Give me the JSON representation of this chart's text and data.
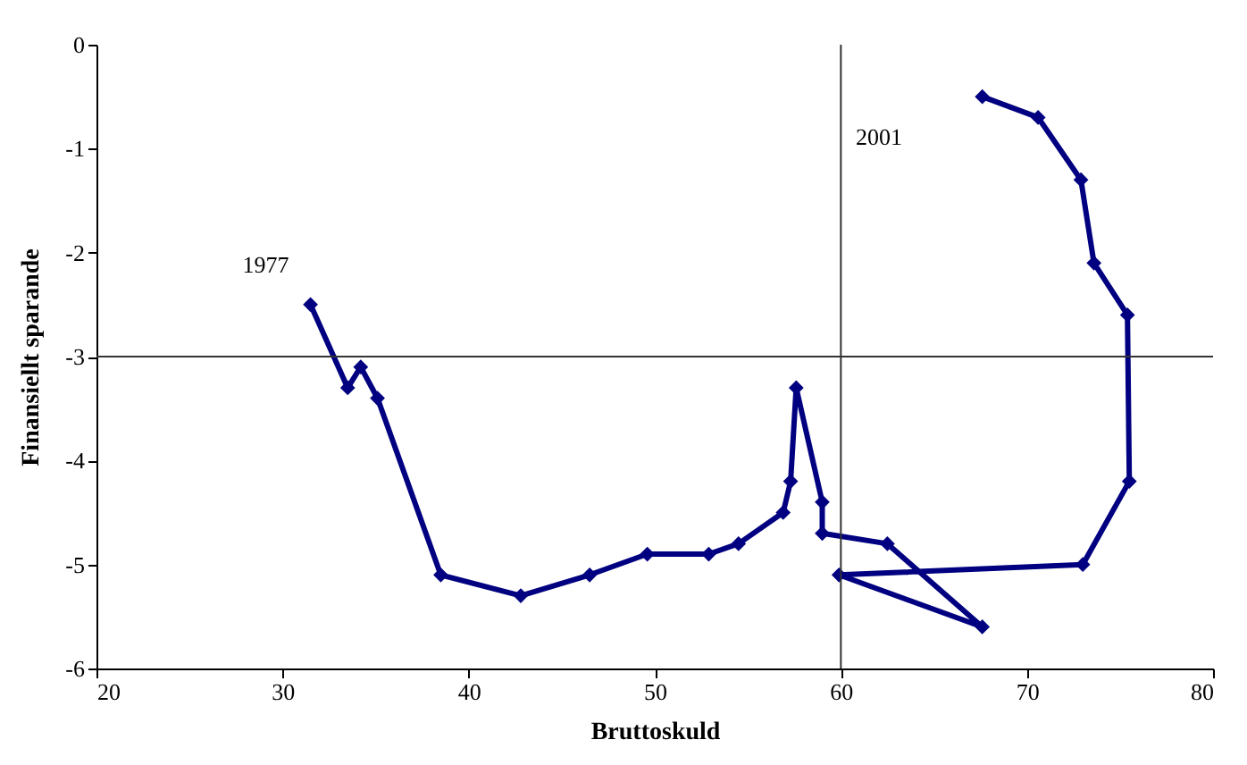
{
  "chart_data": {
    "type": "line",
    "xlabel": "Bruttoskuld",
    "ylabel": "Finansiellt sparande",
    "x": [
      31.5,
      33.5,
      34.2,
      35.1,
      38.5,
      42.8,
      46.5,
      49.6,
      52.9,
      54.5,
      56.9,
      57.3,
      57.6,
      59,
      59,
      62.5,
      67.6,
      59.9,
      73,
      75.5,
      75.4,
      73.6,
      72.9,
      70.6,
      67.6
    ],
    "series": [
      {
        "color": "#000080",
        "values": [
          -2.5,
          -3.3,
          -3.1,
          -3.4,
          -5.1,
          -5.3,
          -5.1,
          -4.9,
          -4.9,
          -4.8,
          -4.5,
          -4.2,
          -3.3,
          -4.4,
          -4.7,
          -4.8,
          -5.6,
          -5.1,
          -5,
          -4.2,
          -2.6,
          -2.1,
          -1.3,
          -0.7,
          -0.5
        ]
      }
    ],
    "xlim": [
      20,
      80
    ],
    "xticks": [
      20,
      30,
      40,
      50,
      60,
      70,
      80
    ],
    "ylim": [
      -6,
      0
    ],
    "yticks": [
      -6,
      -5,
      -4,
      -3,
      -2,
      -1,
      0
    ],
    "ref_lines": [
      {
        "axis": "x",
        "value": 60
      },
      {
        "axis": "y",
        "value": -3
      }
    ],
    "annotations": [
      {
        "text": "1977",
        "x": 31.5,
        "y": -2.5
      },
      "2001"
    ],
    "marker": "diamond",
    "grid": false
  }
}
